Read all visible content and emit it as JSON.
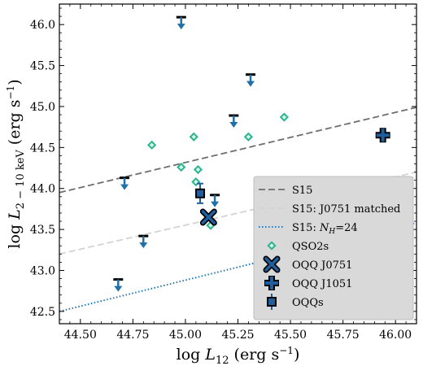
{
  "chart_data": {
    "type": "scatter",
    "xlim": [
      44.4,
      46.1
    ],
    "ylim": [
      42.35,
      46.25
    ],
    "xticks": [
      44.5,
      44.75,
      45.0,
      45.25,
      45.5,
      45.75,
      46.0
    ],
    "yticks": [
      42.5,
      43.0,
      43.5,
      44.0,
      44.5,
      45.0,
      45.5,
      46.0
    ],
    "xtick_labels": [
      "44.50",
      "44.75",
      "45.00",
      "45.25",
      "45.50",
      "45.75",
      "46.00"
    ],
    "ytick_labels": [
      "42.5",
      "43.0",
      "43.5",
      "44.0",
      "44.5",
      "45.0",
      "45.5",
      "46.0"
    ],
    "xlabel": {
      "prefix": "log ",
      "var": "L",
      "sub": "12",
      "unit": " (erg s",
      "sup": "−1",
      "close": ")"
    },
    "ylabel": {
      "prefix": "log ",
      "var": "L",
      "sub": "2 − 10 keV",
      "unit": " (erg s",
      "sup": "−1",
      "close": ")"
    },
    "grid": false,
    "legend_position": "lower-right",
    "lines": [
      {
        "name": "S15",
        "style": "dashed",
        "color": "#6e6e6e",
        "x": [
          44.4,
          46.1
        ],
        "y": [
          43.95,
          44.99
        ]
      },
      {
        "name": "S15: J0751 matched",
        "style": "dashed",
        "color": "#d3d3d3",
        "x": [
          44.4,
          46.1
        ],
        "y": [
          43.2,
          44.2
        ]
      },
      {
        "name": "S15: ",
        "name_math": "N",
        "name_sub": "H",
        "name_tail": "=24",
        "style": "dotted",
        "color": "#1f77b4",
        "x": [
          44.4,
          46.1
        ],
        "y": [
          42.5,
          43.58
        ]
      }
    ],
    "series": [
      {
        "name": "QSO2s",
        "marker": "diamond",
        "color": "#2bb58c",
        "points": [
          [
            44.84,
            44.53
          ],
          [
            45.04,
            44.63
          ],
          [
            44.98,
            44.26
          ],
          [
            45.06,
            44.23
          ],
          [
            45.05,
            44.08
          ],
          [
            45.3,
            44.63
          ],
          [
            45.47,
            44.87
          ],
          [
            45.12,
            43.55
          ]
        ]
      },
      {
        "name": "OQQ J0751",
        "marker": "x",
        "color": "#1f5f9e",
        "points": [
          [
            45.11,
            43.65
          ]
        ]
      },
      {
        "name": "OQQ J1051",
        "marker": "plus",
        "color": "#1f5f9e",
        "points": [
          [
            45.94,
            44.65
          ]
        ]
      },
      {
        "name": "OQQs",
        "marker": "square",
        "color": "#1f5f9e",
        "points": [
          [
            45.07,
            43.94
          ]
        ],
        "error_y": [
          0.12
        ]
      }
    ],
    "upper_limits": {
      "color": "#1f6fa8",
      "points": [
        [
          44.98,
          46.09
        ],
        [
          45.31,
          45.39
        ],
        [
          45.23,
          44.89
        ],
        [
          44.71,
          44.13
        ],
        [
          45.14,
          43.92
        ],
        [
          44.8,
          43.42
        ],
        [
          44.68,
          42.89
        ]
      ]
    }
  }
}
